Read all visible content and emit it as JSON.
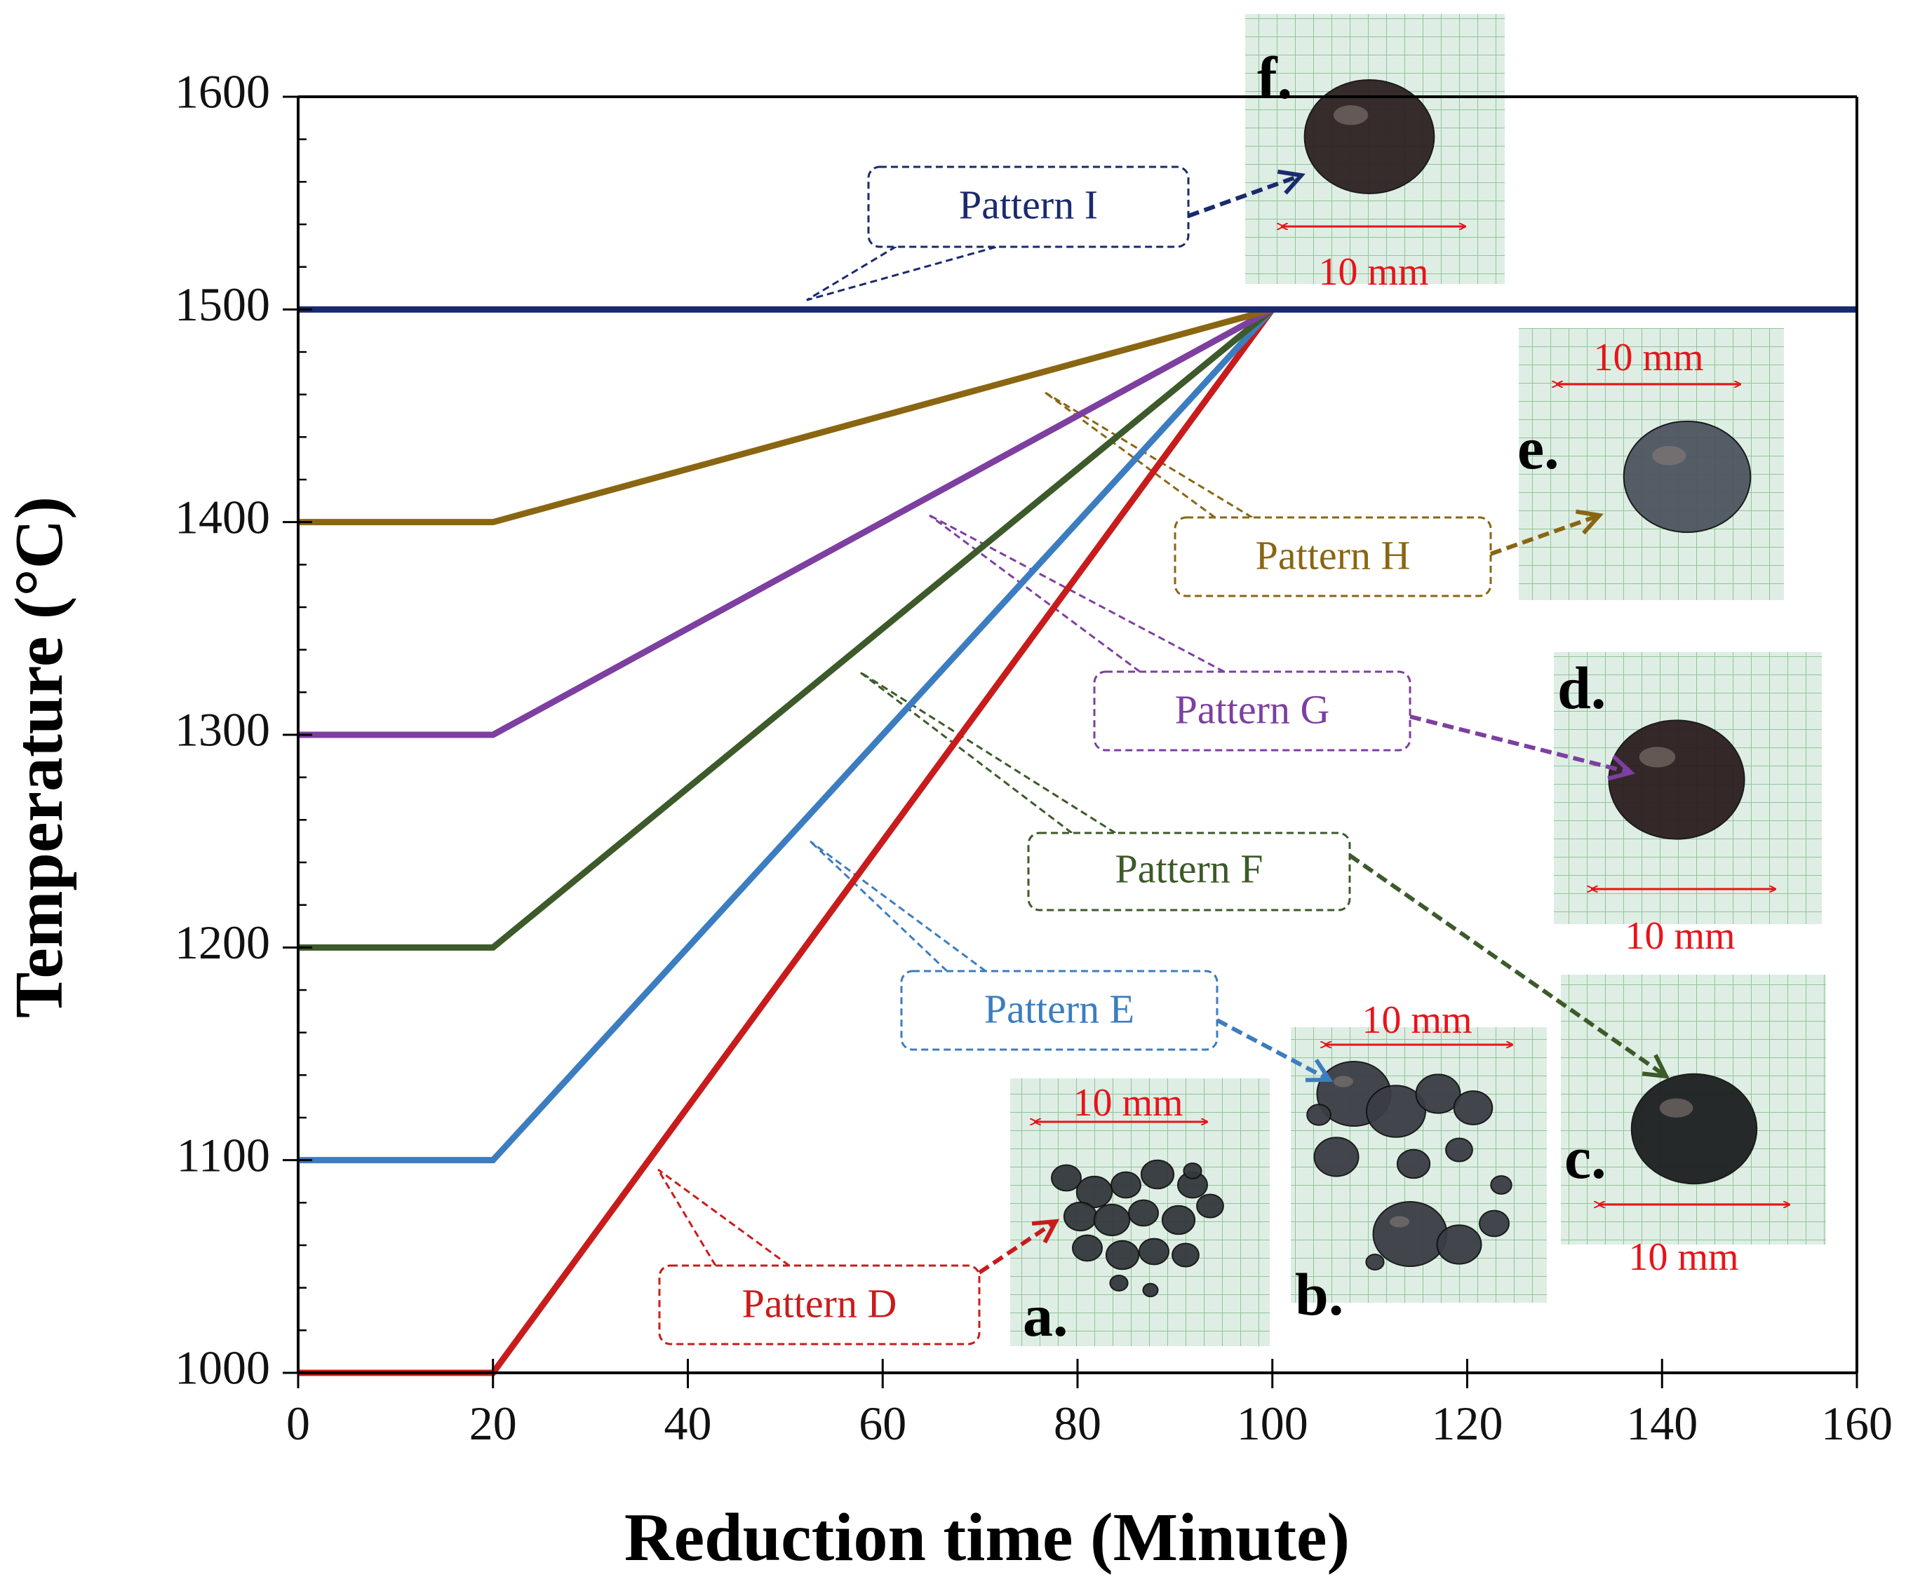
{
  "chart_data": {
    "type": "line",
    "title": "",
    "xlabel": "Reduction time (Minute)",
    "ylabel": "Temperature (°C)",
    "xlim": [
      0,
      160
    ],
    "ylim": [
      1000,
      1600
    ],
    "xticks": [
      0,
      20,
      40,
      60,
      80,
      100,
      120,
      140,
      160
    ],
    "yticks": [
      1000,
      1100,
      1200,
      1300,
      1400,
      1500,
      1600
    ],
    "xtick_labels": [
      "0",
      "20",
      "40",
      "60",
      "80",
      "100",
      "120",
      "140",
      "160"
    ],
    "ytick_labels": [
      "1000",
      "1100",
      "1200",
      "1300",
      "1400",
      "1500",
      "1600"
    ],
    "grid": false,
    "series": [
      {
        "name": "Pattern D",
        "color": "#c81c1c",
        "x": [
          0,
          20,
          100
        ],
        "y": [
          1000,
          1000,
          1500
        ]
      },
      {
        "name": "Pattern E",
        "color": "#3c7dc0",
        "x": [
          0,
          20,
          100
        ],
        "y": [
          1100,
          1100,
          1500
        ]
      },
      {
        "name": "Pattern F",
        "color": "#3d5a2a",
        "x": [
          0,
          20,
          100
        ],
        "y": [
          1200,
          1200,
          1500
        ]
      },
      {
        "name": "Pattern G",
        "color": "#7d3fa0",
        "x": [
          0,
          20,
          100
        ],
        "y": [
          1300,
          1300,
          1500
        ]
      },
      {
        "name": "Pattern H",
        "color": "#8a6612",
        "x": [
          0,
          20,
          100
        ],
        "y": [
          1400,
          1400,
          1500
        ]
      },
      {
        "name": "Pattern I",
        "color": "#1a2a6e",
        "x": [
          0,
          160
        ],
        "y": [
          1500,
          1500
        ]
      }
    ],
    "annotations": [
      {
        "label": "Pattern I",
        "panel": "f."
      },
      {
        "label": "Pattern H",
        "panel": "e."
      },
      {
        "label": "Pattern G",
        "panel": "d."
      },
      {
        "label": "Pattern F",
        "panel": "c."
      },
      {
        "label": "Pattern E",
        "panel": "b."
      },
      {
        "label": "Pattern D",
        "panel": "a."
      }
    ],
    "photo_panels": [
      {
        "letter": "a.",
        "scale_label": "10 mm"
      },
      {
        "letter": "b.",
        "scale_label": "10 mm"
      },
      {
        "letter": "c.",
        "scale_label": "10 mm"
      },
      {
        "letter": "d.",
        "scale_label": "10 mm"
      },
      {
        "letter": "e.",
        "scale_label": "10 mm"
      },
      {
        "letter": "f.",
        "scale_label": "10 mm"
      }
    ]
  }
}
